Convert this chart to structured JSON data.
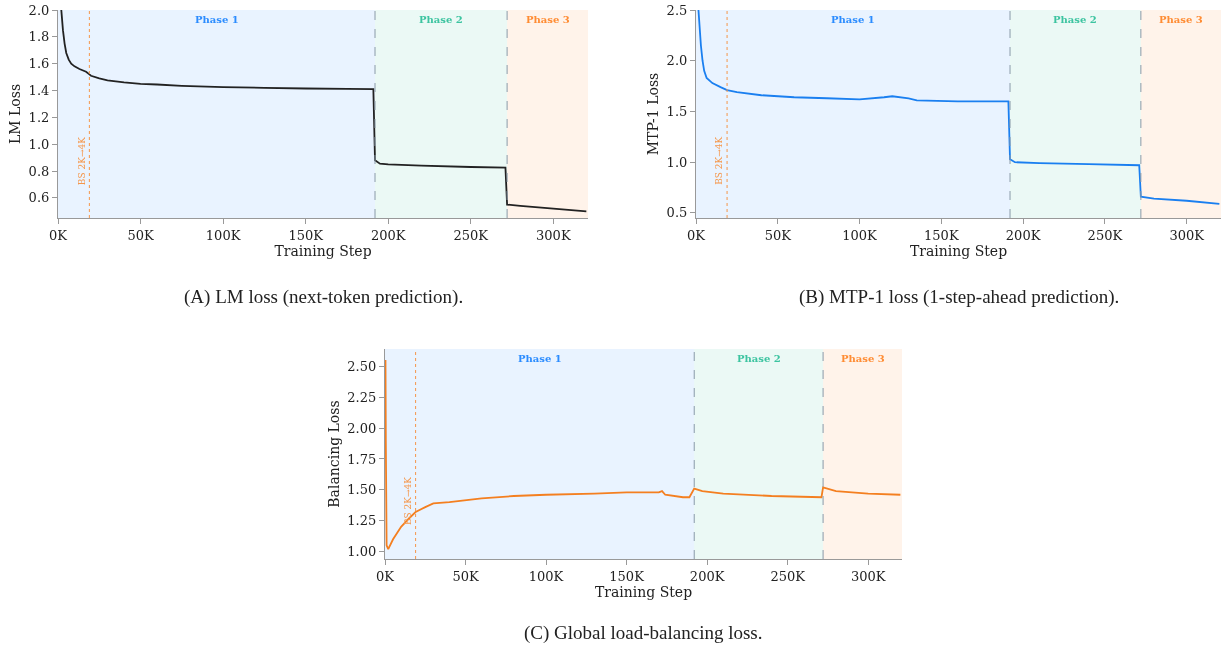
{
  "chart_data": [
    {
      "type": "line",
      "xlabel": "Training Step",
      "ylabel": "LM Loss",
      "annotations": [
        "(A) LM loss (next-token prediction)."
      ],
      "xlim": [
        0,
        321000
      ],
      "xticks": [
        {
          "value": 0,
          "label": "0K"
        },
        {
          "value": 50000,
          "label": "50K"
        },
        {
          "value": 100000,
          "label": "100K"
        },
        {
          "value": 150000,
          "label": "150K"
        },
        {
          "value": 200000,
          "label": "200K"
        },
        {
          "value": 250000,
          "label": "250K"
        },
        {
          "value": 300000,
          "label": "300K"
        }
      ],
      "ylim": [
        0.45,
        2.0
      ],
      "yticks": [
        {
          "value": 0.6,
          "label": "0.6"
        },
        {
          "value": 0.8,
          "label": "0.8"
        },
        {
          "value": 1.0,
          "label": "1.0"
        },
        {
          "value": 1.2,
          "label": "1.2"
        },
        {
          "value": 1.4,
          "label": "1.4"
        },
        {
          "value": 1.6,
          "label": "1.6"
        },
        {
          "value": 1.8,
          "label": "1.8"
        },
        {
          "value": 2.0,
          "label": "2.0"
        }
      ],
      "grid": false,
      "marker": "none",
      "line_style": "solid",
      "series": [
        {
          "color": "#222222",
          "x": [
            2000,
            3000,
            4000,
            5000,
            6500,
            8000,
            10000,
            13000,
            17000,
            19000,
            20000,
            25000,
            30000,
            40000,
            50000,
            60000,
            75000,
            100000,
            125000,
            150000,
            175000,
            191000,
            192000,
            195000,
            200000,
            220000,
            250000,
            271000,
            272000,
            280000,
            300000,
            320000
          ],
          "values": [
            2.0,
            1.85,
            1.75,
            1.68,
            1.63,
            1.6,
            1.58,
            1.56,
            1.54,
            1.52,
            1.51,
            1.49,
            1.475,
            1.46,
            1.45,
            1.445,
            1.435,
            1.425,
            1.42,
            1.415,
            1.412,
            1.41,
            0.88,
            0.855,
            0.85,
            0.84,
            0.83,
            0.825,
            0.55,
            0.54,
            0.52,
            0.5
          ]
        }
      ],
      "bands": [
        {
          "axis": "x",
          "from": 0,
          "to": 192000,
          "label": "Phase 1",
          "color": "#2b8cff"
        },
        {
          "axis": "x",
          "from": 192000,
          "to": 272000,
          "label": "Phase 2",
          "color": "#3cc4a0"
        },
        {
          "axis": "x",
          "from": 272000,
          "to": 321000,
          "label": "Phase 3",
          "color": "#ff8c33"
        }
      ],
      "ref_lines": [
        {
          "axis": "x",
          "value": 19000,
          "label": "BS 2K→4K",
          "color": "#f5964a",
          "line_style": "dotted"
        },
        {
          "axis": "x",
          "value": 192000,
          "color": "#8a9aa8",
          "line_style": "dashed"
        },
        {
          "axis": "x",
          "value": 272000,
          "color": "#8a9aa8",
          "line_style": "dashed"
        }
      ]
    },
    {
      "type": "line",
      "xlabel": "Training Step",
      "ylabel": "MTP-1 Loss",
      "annotations": [
        "(B) MTP-1 loss (1-step-ahead prediction)."
      ],
      "xlim": [
        0,
        321000
      ],
      "xticks": [
        {
          "value": 0,
          "label": "0K"
        },
        {
          "value": 50000,
          "label": "50K"
        },
        {
          "value": 100000,
          "label": "100K"
        },
        {
          "value": 150000,
          "label": "150K"
        },
        {
          "value": 200000,
          "label": "200K"
        },
        {
          "value": 250000,
          "label": "250K"
        },
        {
          "value": 300000,
          "label": "300K"
        }
      ],
      "ylim": [
        0.45,
        2.5
      ],
      "yticks": [
        {
          "value": 0.5,
          "label": "0.5"
        },
        {
          "value": 1.0,
          "label": "1.0"
        },
        {
          "value": 1.5,
          "label": "1.5"
        },
        {
          "value": 2.0,
          "label": "2.0"
        },
        {
          "value": 2.5,
          "label": "2.5"
        }
      ],
      "grid": false,
      "marker": "none",
      "line_style": "solid",
      "series": [
        {
          "color": "#1a7ff0",
          "x": [
            1500,
            3000,
            4000,
            5000,
            6500,
            10000,
            15000,
            19000,
            25000,
            40000,
            60000,
            80000,
            100000,
            115000,
            120000,
            130000,
            135000,
            160000,
            191000,
            192000,
            195000,
            210000,
            240000,
            271000,
            272000,
            280000,
            300000,
            320000
          ],
          "values": [
            2.5,
            2.15,
            2.0,
            1.9,
            1.83,
            1.78,
            1.74,
            1.71,
            1.69,
            1.66,
            1.64,
            1.63,
            1.62,
            1.64,
            1.65,
            1.63,
            1.61,
            1.6,
            1.6,
            1.03,
            1.0,
            0.99,
            0.98,
            0.97,
            0.66,
            0.64,
            0.62,
            0.59
          ]
        }
      ],
      "bands": [
        {
          "axis": "x",
          "from": 0,
          "to": 192000,
          "label": "Phase 1",
          "color": "#2b8cff"
        },
        {
          "axis": "x",
          "from": 192000,
          "to": 272000,
          "label": "Phase 2",
          "color": "#3cc4a0"
        },
        {
          "axis": "x",
          "from": 272000,
          "to": 321000,
          "label": "Phase 3",
          "color": "#ff8c33"
        }
      ],
      "ref_lines": [
        {
          "axis": "x",
          "value": 19000,
          "label": "BS 2K→4K",
          "color": "#f5964a",
          "line_style": "dotted"
        },
        {
          "axis": "x",
          "value": 192000,
          "color": "#8a9aa8",
          "line_style": "dashed"
        },
        {
          "axis": "x",
          "value": 272000,
          "color": "#8a9aa8",
          "line_style": "dashed"
        }
      ]
    },
    {
      "type": "line",
      "xlabel": "Training Step",
      "ylabel": "Balancing Loss",
      "annotations": [
        "(C) Global load-balancing loss."
      ],
      "xlim": [
        0,
        321000
      ],
      "xticks": [
        {
          "value": 0,
          "label": "0K"
        },
        {
          "value": 50000,
          "label": "50K"
        },
        {
          "value": 100000,
          "label": "100K"
        },
        {
          "value": 150000,
          "label": "150K"
        },
        {
          "value": 200000,
          "label": "200K"
        },
        {
          "value": 250000,
          "label": "250K"
        },
        {
          "value": 300000,
          "label": "300K"
        }
      ],
      "ylim": [
        0.94,
        2.64
      ],
      "yticks": [
        {
          "value": 1.0,
          "label": "1.00"
        },
        {
          "value": 1.25,
          "label": "1.25"
        },
        {
          "value": 1.5,
          "label": "1.50"
        },
        {
          "value": 1.75,
          "label": "1.75"
        },
        {
          "value": 2.0,
          "label": "2.00"
        },
        {
          "value": 2.25,
          "label": "2.25"
        },
        {
          "value": 2.5,
          "label": "2.50"
        }
      ],
      "grid": false,
      "marker": "none",
      "line_style": "solid",
      "series": [
        {
          "color": "#f47f20",
          "x": [
            300,
            500,
            1000,
            2000,
            5000,
            10000,
            15000,
            19000,
            25000,
            30000,
            40000,
            60000,
            80000,
            100000,
            130000,
            150000,
            170000,
            172000,
            174000,
            185000,
            189000,
            192000,
            197000,
            210000,
            240000,
            271000,
            272000,
            280000,
            300000,
            320000
          ],
          "values": [
            2.55,
            1.9,
            1.05,
            1.02,
            1.1,
            1.2,
            1.27,
            1.32,
            1.36,
            1.39,
            1.4,
            1.43,
            1.45,
            1.46,
            1.47,
            1.48,
            1.48,
            1.49,
            1.46,
            1.44,
            1.44,
            1.51,
            1.49,
            1.47,
            1.45,
            1.44,
            1.52,
            1.49,
            1.47,
            1.46
          ]
        }
      ],
      "bands": [
        {
          "axis": "x",
          "from": 0,
          "to": 192000,
          "label": "Phase 1",
          "color": "#2b8cff"
        },
        {
          "axis": "x",
          "from": 192000,
          "to": 272000,
          "label": "Phase 2",
          "color": "#3cc4a0"
        },
        {
          "axis": "x",
          "from": 272000,
          "to": 321000,
          "label": "Phase 3",
          "color": "#ff8c33"
        }
      ],
      "ref_lines": [
        {
          "axis": "x",
          "value": 19000,
          "label": "BS 2K→4K",
          "color": "#f5964a",
          "line_style": "dotted"
        },
        {
          "axis": "x",
          "value": 192000,
          "color": "#8a9aa8",
          "line_style": "dashed"
        },
        {
          "axis": "x",
          "value": 272000,
          "color": "#8a9aa8",
          "line_style": "dashed"
        }
      ]
    }
  ]
}
